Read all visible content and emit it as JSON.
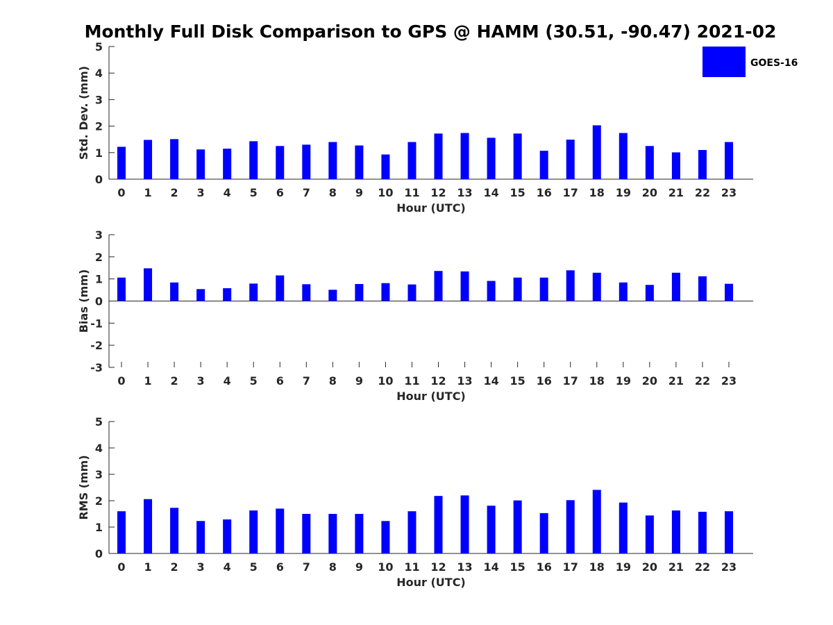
{
  "figure": {
    "title": "Monthly Full Disk Comparison to GPS @ HAMM (30.51, -90.47) 2021-02",
    "legend": {
      "label": "GOES-16",
      "color": "#0000ff",
      "placement": "top-right"
    }
  },
  "chart_data": [
    {
      "type": "bar",
      "name": "std",
      "xlabel": "Hour (UTC)",
      "ylabel": "Std. Dev. (mm)",
      "ylim": [
        0,
        5
      ],
      "yticks": [
        "0",
        "1",
        "2",
        "3",
        "4",
        "5"
      ],
      "categories": [
        "0",
        "1",
        "2",
        "3",
        "4",
        "5",
        "6",
        "7",
        "8",
        "9",
        "10",
        "11",
        "12",
        "13",
        "14",
        "15",
        "16",
        "17",
        "18",
        "19",
        "20",
        "21",
        "22",
        "23"
      ],
      "series": [
        {
          "name": "GOES-16",
          "color": "#0000ff",
          "values": [
            1.22,
            1.48,
            1.51,
            1.12,
            1.15,
            1.43,
            1.25,
            1.3,
            1.4,
            1.27,
            0.93,
            1.4,
            1.72,
            1.74,
            1.56,
            1.72,
            1.07,
            1.49,
            2.03,
            1.74,
            1.25,
            1.01,
            1.1,
            1.4
          ]
        }
      ]
    },
    {
      "type": "bar",
      "name": "bias",
      "xlabel": "Hour (UTC)",
      "ylabel": "Bias (mm)",
      "ylim": [
        -3,
        3
      ],
      "yticks": [
        "-3",
        "-2",
        "-1",
        "0",
        "1",
        "2",
        "3"
      ],
      "categories": [
        "0",
        "1",
        "2",
        "3",
        "4",
        "5",
        "6",
        "7",
        "8",
        "9",
        "10",
        "11",
        "12",
        "13",
        "14",
        "15",
        "16",
        "17",
        "18",
        "19",
        "20",
        "21",
        "22",
        "23"
      ],
      "series": [
        {
          "name": "GOES-16",
          "color": "#0000ff",
          "values": [
            1.06,
            1.48,
            0.84,
            0.54,
            0.58,
            0.79,
            1.16,
            0.76,
            0.51,
            0.77,
            0.81,
            0.75,
            1.36,
            1.34,
            0.91,
            1.06,
            1.06,
            1.39,
            1.28,
            0.84,
            0.73,
            1.28,
            1.12,
            0.78
          ]
        }
      ]
    },
    {
      "type": "bar",
      "name": "rms",
      "xlabel": "Hour (UTC)",
      "ylabel": "RMS (mm)",
      "ylim": [
        0,
        5
      ],
      "yticks": [
        "0",
        "1",
        "2",
        "3",
        "4",
        "5"
      ],
      "categories": [
        "0",
        "1",
        "2",
        "3",
        "4",
        "5",
        "6",
        "7",
        "8",
        "9",
        "10",
        "11",
        "12",
        "13",
        "14",
        "15",
        "16",
        "17",
        "18",
        "19",
        "20",
        "21",
        "22",
        "23"
      ],
      "series": [
        {
          "name": "GOES-16",
          "color": "#0000ff",
          "values": [
            1.6,
            2.06,
            1.73,
            1.23,
            1.29,
            1.63,
            1.7,
            1.5,
            1.5,
            1.5,
            1.23,
            1.6,
            2.18,
            2.2,
            1.81,
            2.01,
            1.53,
            2.02,
            2.41,
            1.93,
            1.44,
            1.63,
            1.58,
            1.6
          ]
        }
      ]
    }
  ]
}
